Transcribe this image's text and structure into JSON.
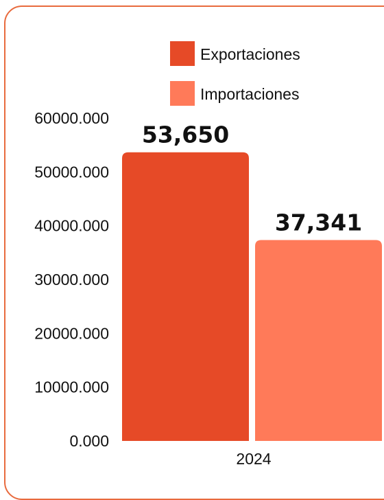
{
  "chart_data": {
    "type": "bar",
    "categories": [
      "2024"
    ],
    "series": [
      {
        "name": "Exportaciones",
        "values": [
          53650
        ],
        "color": "#e64a27",
        "value_label": "53,650"
      },
      {
        "name": "Importaciones",
        "values": [
          37341
        ],
        "color": "#ff7a59",
        "value_label": "37,341"
      }
    ],
    "y_ticks": [
      "0.000",
      "10000.000",
      "20000.000",
      "30000.000",
      "40000.000",
      "50000.000",
      "60000.000"
    ],
    "ylim": [
      0,
      60000
    ],
    "grid": false,
    "legend_position": "top-right",
    "frame_color": "#e86a3d"
  }
}
